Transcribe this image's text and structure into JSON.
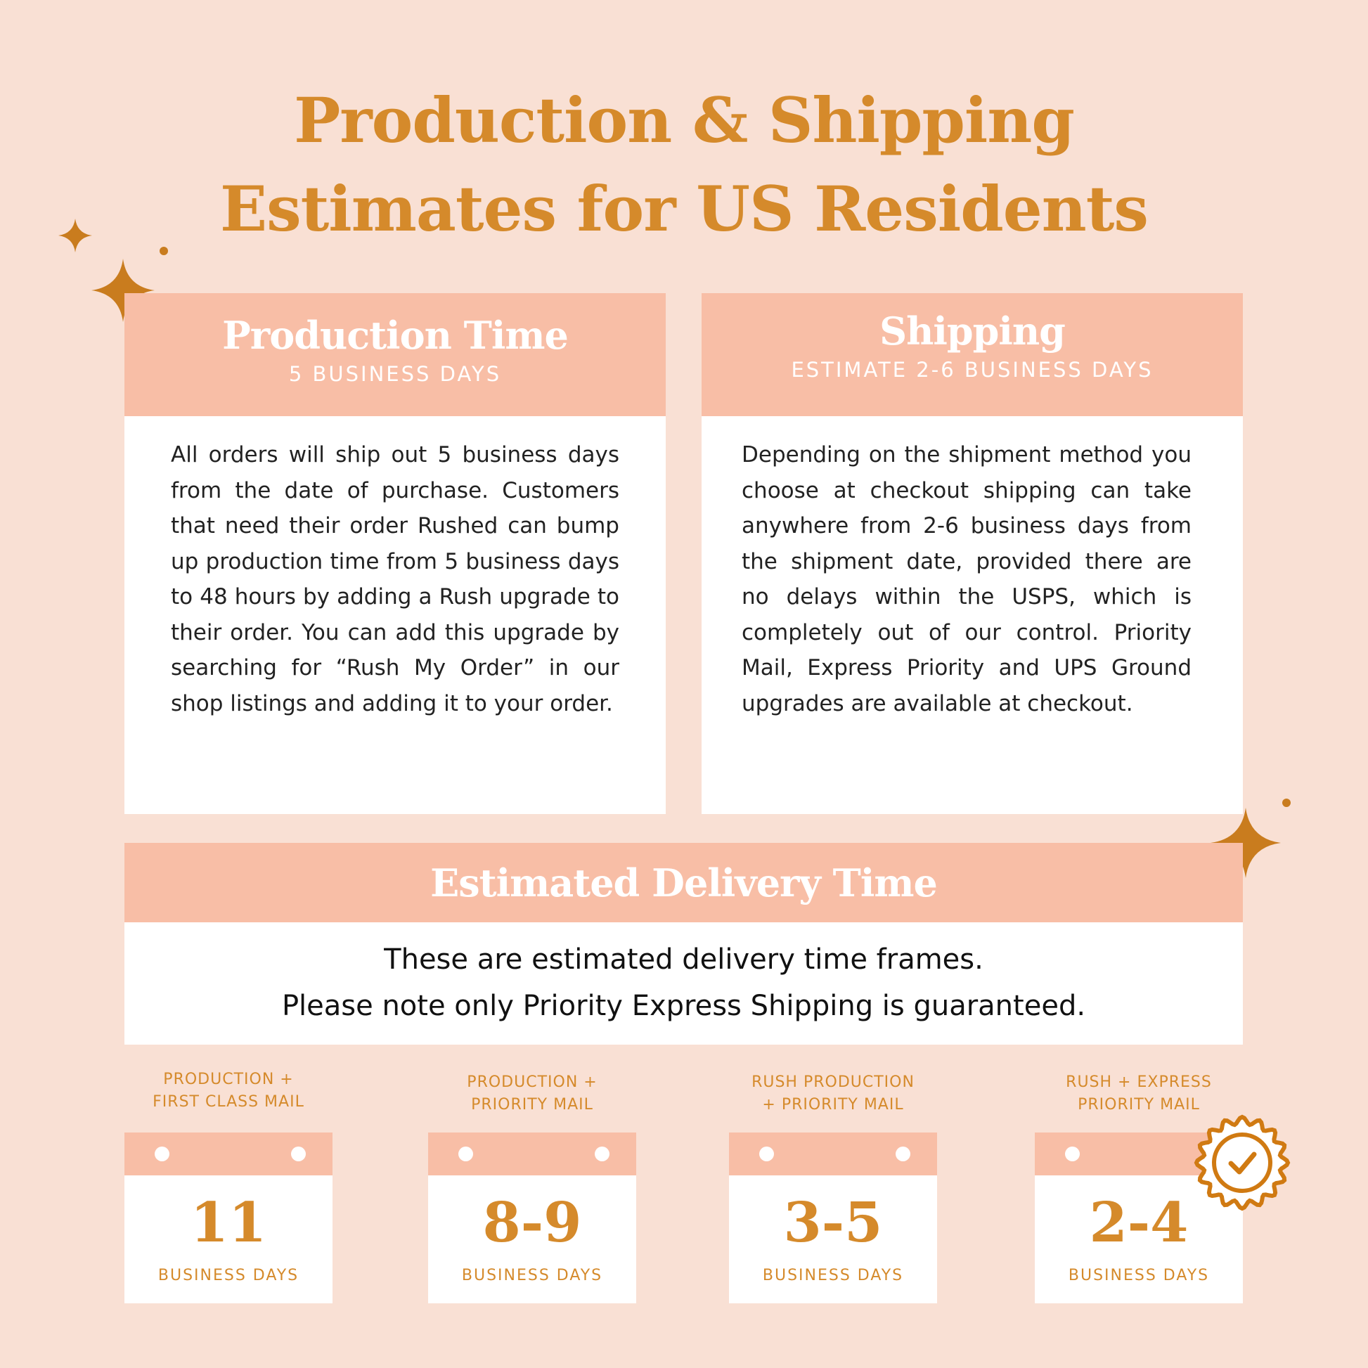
{
  "title": {
    "line1": "Production & Shipping",
    "line2": "Estimates for US Residents"
  },
  "colors": {
    "background": "#f9e0d4",
    "accent": "#d58a2b",
    "header": "#f8bea6"
  },
  "production": {
    "heading": "Production Time",
    "subheading": "5 BUSINESS DAYS",
    "body": "All orders will ship out 5 business days from the date of purchase. Customers that need their order Rushed can bump up production time from 5 business days to 48 hours by adding a Rush upgrade to their order. You can add this upgrade by searching for “Rush My Order” in our shop listings and adding it to your order."
  },
  "shipping": {
    "heading": "Shipping",
    "subheading": "ESTIMATE 2-6 BUSINESS DAYS",
    "body": "Depending on the shipment method you choose at checkout shipping can take anywhere from 2-6 business days from the shipment date, provided there are no delays within the USPS, which is completely out of our control. Priority Mail, Express Priority and UPS Ground upgrades are available at checkout."
  },
  "delivery": {
    "heading": "Estimated Delivery Time",
    "line1": "These are estimated delivery time frames.",
    "line2": "Please note only Priority Express Shipping is guaranteed."
  },
  "options": [
    {
      "label1": "PRODUCTION +",
      "label2": "FIRST CLASS MAIL",
      "days": "11",
      "unit": "BUSINESS DAYS"
    },
    {
      "label1": "PRODUCTION +",
      "label2": "PRIORITY MAIL",
      "days": "8-9",
      "unit": "BUSINESS DAYS"
    },
    {
      "label1": "RUSH PRODUCTION",
      "label2": "+ PRIORITY MAIL",
      "days": "3-5",
      "unit": "BUSINESS DAYS"
    },
    {
      "label1": "RUSH + EXPRESS",
      "label2": "PRIORITY MAIL",
      "days": "2-4",
      "unit": "BUSINESS DAYS",
      "badge": "check-badge-icon"
    }
  ]
}
